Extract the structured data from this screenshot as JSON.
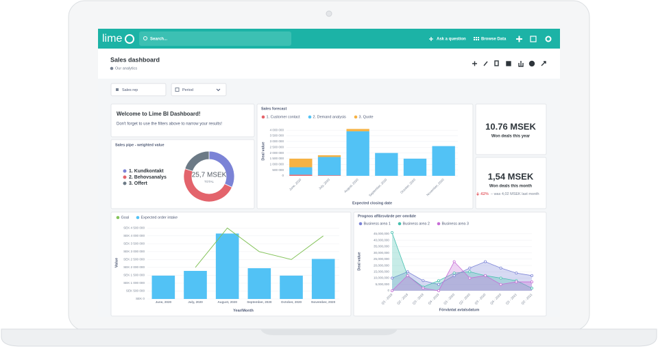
{
  "app": {
    "logo": "lime",
    "search": "Search...",
    "ask": "Ask a question",
    "browse": "Browse Data"
  },
  "header": {
    "title": "Sales dashboard",
    "collection": "Our analytics"
  },
  "filters": [
    "Sales rep",
    "Period"
  ],
  "welcome": {
    "title": "Welcome to Lime BI Dashboard!",
    "text": "Don't forget to use the filters above to narrow your results!"
  },
  "metrics": [
    {
      "value": "10.76 MSEK",
      "label": "Won deals this year"
    },
    {
      "value": "1,54 MSEK",
      "label": "Won deals this month",
      "change": "-62%",
      "comparison": "– was 4,02 MSEK last month"
    }
  ],
  "charts": [
    {
      "type": "pie",
      "title": "Sales pipe - weighted value",
      "categories": [
        "1. Kundkontakt",
        "2. Behovsanalys",
        "3. Offert"
      ],
      "values": [
        32,
        48,
        20
      ],
      "colors": [
        "#7b83d6",
        "#e3646c",
        "#6c7a86"
      ],
      "center_label": "25,7 MSEK",
      "center_sublabel": "TOTAL"
    },
    {
      "type": "stacked-bar",
      "title": "Sales forecast",
      "x_label": "Expected closing date",
      "y_label": "Deal value",
      "categories": [
        "June, 2020",
        "July, 2020",
        "August, 2020",
        "September, 2020",
        "October, 2020",
        "November, 2020"
      ],
      "series": [
        {
          "name": "1. Customer contact",
          "color": "#e5636a",
          "values": [
            100000,
            50000,
            0,
            0,
            0,
            0
          ]
        },
        {
          "name": "2. Demand analysis",
          "color": "#52c2f5",
          "values": [
            650000,
            1600000,
            3900000,
            2000000,
            1500000,
            2600000
          ]
        },
        {
          "name": "3. Quote",
          "color": "#f6b243",
          "values": [
            750000,
            150000,
            200000,
            0,
            0,
            0
          ]
        }
      ],
      "ylim": [
        0,
        4250000
      ],
      "yticks": [
        0,
        {
          "value": 500000,
          "label": "500 000"
        },
        {
          "value": 1000000,
          "label": "1 000 000"
        },
        {
          "value": 1500000,
          "label": "1 500 000"
        },
        {
          "value": 2000000,
          "label": "2 000 000"
        },
        {
          "value": 2500000,
          "label": "2 500 000"
        },
        {
          "value": 3000000,
          "label": "3 000 000"
        },
        {
          "value": 3500000,
          "label": "3 500 000"
        },
        {
          "value": 4000000,
          "label": "4 000 000"
        }
      ]
    },
    {
      "type": "combo",
      "x_label": "Year/Month",
      "y_label": "Value",
      "categories": [
        "June, 2020",
        "July, 2020",
        "August, 2020",
        "September, 2020",
        "October, 2020",
        "November, 2020"
      ],
      "series": [
        {
          "name": "Goal",
          "type": "line",
          "color": "#84c35a",
          "values": [
            null,
            2000000,
            4500000,
            3000000,
            2500000,
            4000000
          ]
        },
        {
          "name": "Expected order intake",
          "type": "bar",
          "color": "#52c2f5",
          "values": [
            1480000,
            1780000,
            4150000,
            1950000,
            1480000,
            2540000
          ]
        }
      ],
      "ylim": [
        0,
        4600000
      ],
      "yticks": [
        {
          "value": 0,
          "label": "SEK 0"
        },
        {
          "value": 500000,
          "label": "SEK 500 000"
        },
        {
          "value": 1000000,
          "label": "SEK 1 000 000"
        },
        {
          "value": 1500000,
          "label": "SEK 1 500 000"
        },
        {
          "value": 2000000,
          "label": "SEK 2 000 000"
        },
        {
          "value": 2500000,
          "label": "SEK 2 500 000"
        },
        {
          "value": 3000000,
          "label": "SEK 3 000 000"
        },
        {
          "value": 3500000,
          "label": "SEK 3 500 000"
        },
        {
          "value": 4000000,
          "label": "SEK 4 000 000"
        },
        {
          "value": 4500000,
          "label": "SEK 4 500 000"
        }
      ]
    },
    {
      "type": "area",
      "title": "Prognos affärsvärde per område",
      "x_label": "Förväntat avtalsdatum",
      "y_label": "Deal value",
      "categories": [
        "Q1 - 2019",
        "Q2 - 2019",
        "Q3 - 2019",
        "Q4 - 2019",
        "Q1 - 2020",
        "Q2 - 2020",
        "Q3 - 2020",
        "Q4 - 2020",
        "Q1 - 2021",
        "Q2 - 2021"
      ],
      "series": [
        {
          "name": "Business area 1",
          "color": "#7b83d6",
          "values": [
            10000000,
            15000000,
            8000000,
            5000000,
            12000000,
            18000000,
            23000000,
            18000000,
            14000000,
            12000000
          ]
        },
        {
          "name": "Business area 2",
          "color": "#45bfae",
          "values": [
            46000000,
            12000000,
            3000000,
            8000000,
            14000000,
            15000000,
            12000000,
            10000000,
            8000000,
            2000000
          ]
        },
        {
          "name": "Business area 3",
          "color": "#c76cd6",
          "values": [
            0,
            12000000,
            2000000,
            0,
            23000000,
            10000000,
            12000000,
            5000000,
            7000000,
            7000000
          ]
        }
      ],
      "ylim": [
        0,
        46000000
      ],
      "yticks": [
        0,
        {
          "value": 5000000,
          "label": "5,000,000"
        },
        {
          "value": 10000000,
          "label": "10,000,000"
        },
        {
          "value": 15000000,
          "label": "15,000,000"
        },
        {
          "value": 20000000,
          "label": "20,000,000"
        },
        {
          "value": 25000000,
          "label": "25,000,000"
        },
        {
          "value": 30000000,
          "label": "30,000,000"
        },
        {
          "value": 35000000,
          "label": "35,000,000"
        },
        {
          "value": 40000000,
          "label": "40,000,000"
        },
        {
          "value": 45000000,
          "label": "45,000,000"
        }
      ]
    }
  ]
}
